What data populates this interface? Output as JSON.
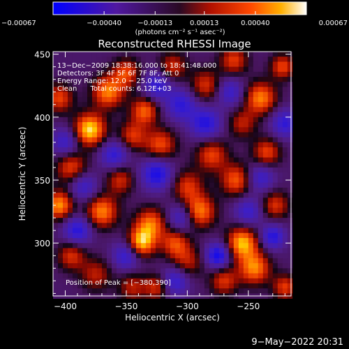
{
  "chart_data": {
    "type": "heatmap",
    "title": "Reconstructed RHESSI Image",
    "xlabel": "Heliocentric X (arcsec)",
    "ylabel": "Heliocentric Y (arcsec)",
    "xlim": [
      -410,
      -215
    ],
    "ylim": [
      258,
      452
    ],
    "x_ticks": [
      -400,
      -350,
      -300,
      -250
    ],
    "y_ticks": [
      300,
      350,
      400,
      450
    ],
    "x_tick_labels": [
      "−400",
      "−350",
      "−300",
      "−250"
    ],
    "y_tick_labels": [
      "300",
      "350",
      "400",
      "450"
    ],
    "colorbar": {
      "min": -0.00067,
      "max": 0.00067,
      "ticks": [
        -0.00067,
        -0.0004,
        -0.00013,
        0.00013,
        0.0004,
        0.00067
      ],
      "tick_labels": [
        "−0.00067",
        "−0.00040",
        "−0.00013",
        "0.00013",
        "0.00040",
        "0.00067"
      ],
      "units_label": "(photons cm⁻² s⁻¹ asec⁻²)"
    },
    "annotations": [
      "13−Dec−2009 18:38:16.000 to 18:41:48.000",
      "Detectors: 3F 4F 5F 6F 7F 8F, Att 0",
      "Energy Range: 12.0 − 25.0 keV",
      "Clean      Total counts: 6.12E+03"
    ],
    "peak_label": "Position of Peak = [−380,390]",
    "peak": [
      -380,
      390
    ],
    "sources": [
      {
        "x": -380,
        "y": 390,
        "v": 0.00067,
        "s": 9
      },
      {
        "x": -365,
        "y": 420,
        "v": 0.00052,
        "s": 9
      },
      {
        "x": -405,
        "y": 415,
        "v": 0.0004,
        "s": 8
      },
      {
        "x": -350,
        "y": 435,
        "v": 0.0004,
        "s": 8
      },
      {
        "x": -335,
        "y": 405,
        "v": 0.00046,
        "s": 8
      },
      {
        "x": -345,
        "y": 385,
        "v": 0.00036,
        "s": 8
      },
      {
        "x": -322,
        "y": 378,
        "v": 0.00042,
        "s": 9
      },
      {
        "x": -312,
        "y": 440,
        "v": 0.00034,
        "s": 8
      },
      {
        "x": -285,
        "y": 425,
        "v": 0.00036,
        "s": 9
      },
      {
        "x": -262,
        "y": 445,
        "v": 0.00038,
        "s": 8
      },
      {
        "x": -240,
        "y": 415,
        "v": 0.00052,
        "s": 9
      },
      {
        "x": -222,
        "y": 440,
        "v": 0.0004,
        "s": 7
      },
      {
        "x": -255,
        "y": 395,
        "v": 0.0003,
        "s": 8
      },
      {
        "x": -280,
        "y": 370,
        "v": 0.0004,
        "s": 9
      },
      {
        "x": -300,
        "y": 345,
        "v": 0.00036,
        "s": 9
      },
      {
        "x": -290,
        "y": 325,
        "v": 0.00052,
        "s": 9
      },
      {
        "x": -260,
        "y": 350,
        "v": 0.00044,
        "s": 9
      },
      {
        "x": -235,
        "y": 372,
        "v": 0.0004,
        "s": 8
      },
      {
        "x": -228,
        "y": 330,
        "v": 0.00036,
        "s": 8
      },
      {
        "x": -395,
        "y": 360,
        "v": 0.0004,
        "s": 9
      },
      {
        "x": -405,
        "y": 330,
        "v": 0.00055,
        "s": 8
      },
      {
        "x": -370,
        "y": 325,
        "v": 0.00052,
        "s": 9
      },
      {
        "x": -355,
        "y": 350,
        "v": 0.00034,
        "s": 8
      },
      {
        "x": -330,
        "y": 315,
        "v": 0.00048,
        "s": 9
      },
      {
        "x": -338,
        "y": 300,
        "v": 0.0006,
        "s": 8
      },
      {
        "x": -310,
        "y": 300,
        "v": 0.0004,
        "s": 8
      },
      {
        "x": -300,
        "y": 285,
        "v": 0.0003,
        "s": 9
      },
      {
        "x": -255,
        "y": 300,
        "v": 0.0006,
        "s": 9
      },
      {
        "x": -245,
        "y": 280,
        "v": 0.00052,
        "s": 9
      },
      {
        "x": -270,
        "y": 270,
        "v": 0.00036,
        "s": 8
      },
      {
        "x": -220,
        "y": 265,
        "v": 0.00038,
        "s": 7
      },
      {
        "x": -395,
        "y": 290,
        "v": 0.00036,
        "s": 8
      },
      {
        "x": -375,
        "y": 275,
        "v": 0.0003,
        "s": 9
      },
      {
        "x": -345,
        "y": 265,
        "v": 0.0003,
        "s": 8
      },
      {
        "x": -325,
        "y": 265,
        "v": 0.00036,
        "s": 7
      },
      {
        "x": -325,
        "y": 355,
        "v": -0.0005,
        "s": 9
      },
      {
        "x": -285,
        "y": 395,
        "v": -0.00045,
        "s": 9
      },
      {
        "x": -305,
        "y": 410,
        "v": -0.0004,
        "s": 9
      },
      {
        "x": -360,
        "y": 370,
        "v": -0.0004,
        "s": 8
      },
      {
        "x": -385,
        "y": 345,
        "v": -0.00035,
        "s": 8
      },
      {
        "x": -350,
        "y": 290,
        "v": -0.0004,
        "s": 8
      },
      {
        "x": -275,
        "y": 290,
        "v": -0.00055,
        "s": 7
      },
      {
        "x": -230,
        "y": 305,
        "v": -0.00045,
        "s": 7
      },
      {
        "x": -250,
        "y": 325,
        "v": -0.00035,
        "s": 8
      },
      {
        "x": -220,
        "y": 395,
        "v": -0.0004,
        "s": 8
      },
      {
        "x": -265,
        "y": 420,
        "v": -0.00035,
        "s": 8
      },
      {
        "x": -325,
        "y": 425,
        "v": -0.0004,
        "s": 8
      },
      {
        "x": -390,
        "y": 310,
        "v": -0.00045,
        "s": 8
      },
      {
        "x": -400,
        "y": 380,
        "v": -0.00035,
        "s": 8
      },
      {
        "x": -305,
        "y": 320,
        "v": -0.00035,
        "s": 8
      },
      {
        "x": -310,
        "y": 270,
        "v": -0.0004,
        "s": 8
      },
      {
        "x": -240,
        "y": 352,
        "v": -0.00035,
        "s": 8
      }
    ]
  },
  "footer": {
    "timestamp": "9−May−2022 20:31"
  }
}
